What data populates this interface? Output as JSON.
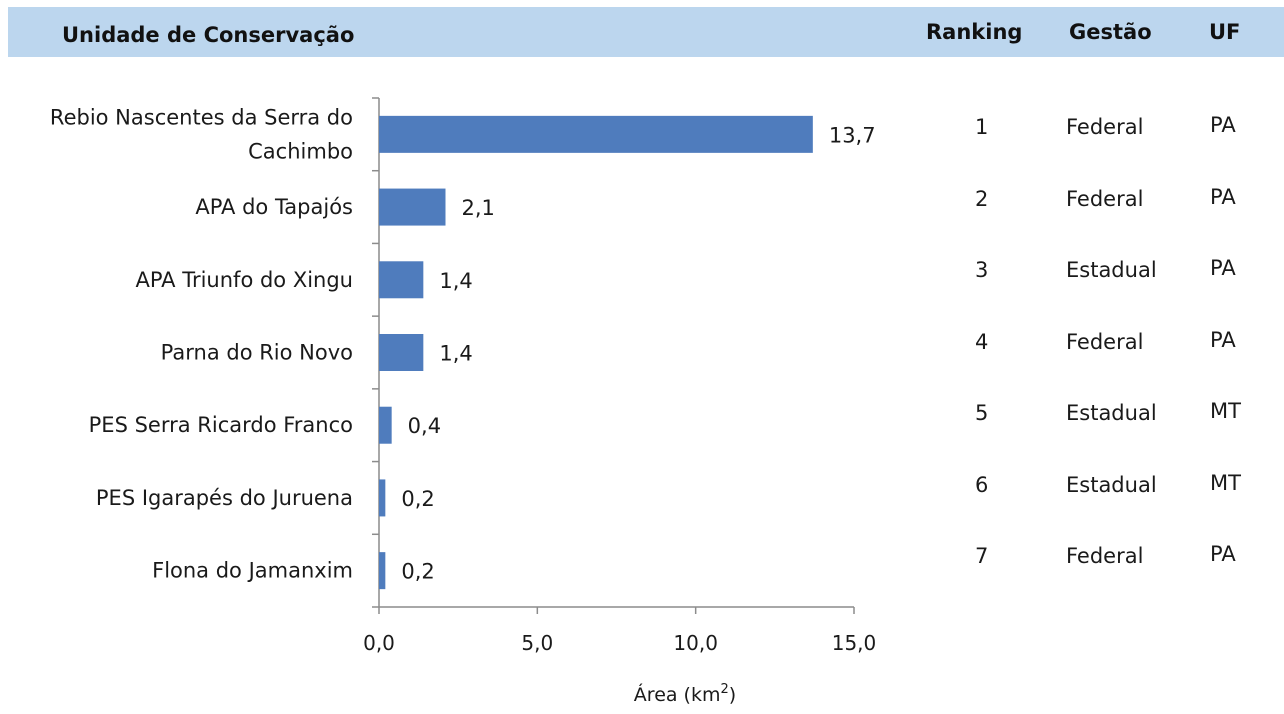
{
  "header": {
    "unit_label": "Unidade de Conservação",
    "ranking_label": "Ranking",
    "gestao_label": "Gestão",
    "uf_label": "UF"
  },
  "colors": {
    "header_band": "#bcd6ee",
    "bar": "#4f7cbd",
    "axis": "#8c8c8c"
  },
  "chart_data": {
    "type": "bar",
    "orientation": "horizontal",
    "categories": [
      "Rebio  Nascentes da Serra do Cachimbo",
      "APA do Tapajós",
      "APA  Triunfo do Xingu",
      "Parna do Rio Novo",
      "PES  Serra Ricardo Franco",
      "PES  Igarapés do Juruena",
      "Flona do Jamanxim"
    ],
    "category_lines": [
      [
        "Rebio  Nascentes da Serra do",
        "Cachimbo"
      ],
      [
        "APA do Tapajós"
      ],
      [
        "APA  Triunfo do Xingu"
      ],
      [
        "Parna do Rio Novo"
      ],
      [
        "PES  Serra Ricardo Franco"
      ],
      [
        "PES  Igarapés do Juruena"
      ],
      [
        "Flona do Jamanxim"
      ]
    ],
    "values": [
      13.7,
      2.1,
      1.4,
      1.4,
      0.4,
      0.2,
      0.2
    ],
    "value_labels": [
      "13,7",
      "2,1",
      "1,4",
      "1,4",
      "0,4",
      "0,2",
      "0,2"
    ],
    "xlabel": "Área (km",
    "xlabel_sup": "2",
    "xlabel_end": ")",
    "xlim": [
      0,
      15
    ],
    "xticks": [
      0,
      5,
      10,
      15
    ],
    "xtick_labels": [
      "0,0",
      "5,0",
      "10,0",
      "15,0"
    ],
    "grid": false,
    "legend": "none"
  },
  "table": {
    "rows": [
      {
        "ranking": "1",
        "gestao": "Federal",
        "uf": "PA"
      },
      {
        "ranking": "2",
        "gestao": "Federal",
        "uf": "PA"
      },
      {
        "ranking": "3",
        "gestao": "Estadual",
        "uf": "PA"
      },
      {
        "ranking": "4",
        "gestao": "Federal",
        "uf": "PA"
      },
      {
        "ranking": "5",
        "gestao": "Estadual",
        "uf": "MT"
      },
      {
        "ranking": "6",
        "gestao": "Estadual",
        "uf": "MT"
      },
      {
        "ranking": "7",
        "gestao": "Federal",
        "uf": "PA"
      }
    ]
  }
}
